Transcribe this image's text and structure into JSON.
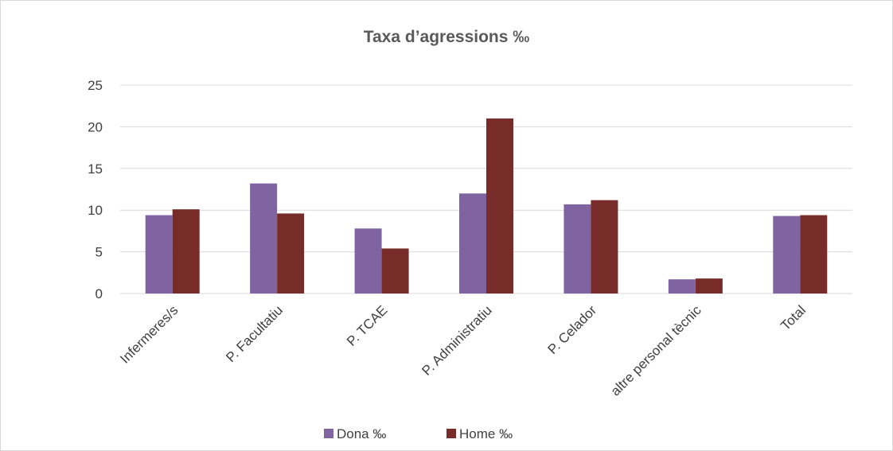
{
  "chart_data": {
    "type": "bar",
    "title": "Taxa d’agressions ‰",
    "xlabel": "",
    "ylabel": "",
    "categories": [
      "Infermeres/s",
      "P. Facultatiu",
      "P. TCAE",
      "P. Administratiu",
      "P. Celador",
      "altre personal tècnic",
      "Total"
    ],
    "series": [
      {
        "name": "Dona ‰",
        "color": "#8064a2",
        "values": [
          9.4,
          13.2,
          7.8,
          12.0,
          10.7,
          1.7,
          9.3
        ]
      },
      {
        "name": "Home ‰",
        "color": "#772c2a",
        "values": [
          10.1,
          9.6,
          5.4,
          21.0,
          11.2,
          1.8,
          9.4
        ]
      }
    ],
    "ylim": [
      0,
      25
    ],
    "yticks": [
      0,
      5,
      10,
      15,
      20,
      25
    ],
    "grid": true,
    "legend_position": "bottom"
  }
}
